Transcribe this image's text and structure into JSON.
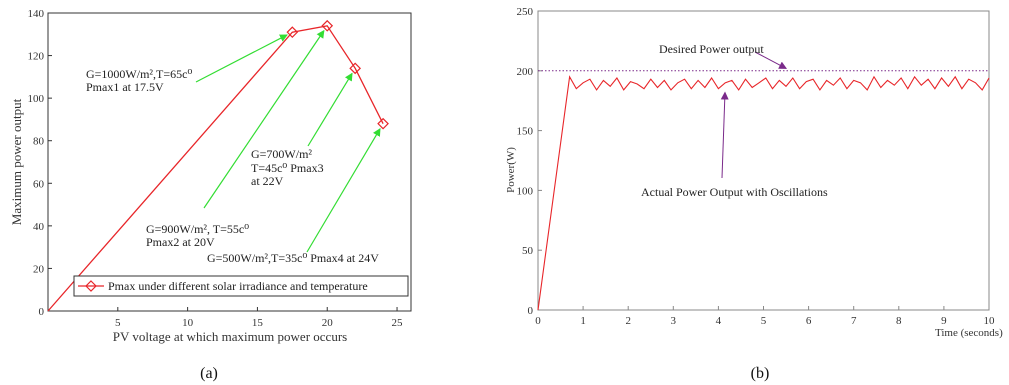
{
  "chart_data": [
    {
      "type": "line",
      "xlabel": "PV voltage at which maximum power occurs",
      "ylabel": "Maximum power output",
      "xlim": [
        0,
        26
      ],
      "ylim": [
        0,
        140
      ],
      "xticks": [
        5,
        10,
        15,
        20,
        25
      ],
      "yticks": [
        0,
        20,
        40,
        60,
        80,
        100,
        120,
        140
      ],
      "grid": false,
      "legend": "bottom",
      "line_color": "#e8262a",
      "arrow_color": "#33dd33",
      "series": [
        {
          "name": "Pmax under different solar irradiance and temperature",
          "marker": "diamond",
          "x": [
            0,
            17.5,
            20,
            22,
            24
          ],
          "y": [
            0,
            131,
            134,
            114,
            88
          ],
          "marker_x": [
            17.5,
            20,
            22,
            24
          ],
          "marker_y": [
            131,
            134,
            114,
            88
          ]
        }
      ],
      "annotations": [
        {
          "lines": [
            "G=1000W/m²,T=65c⁰",
            "Pmax1 at 17.5V"
          ],
          "target": [
            17.5,
            131
          ]
        },
        {
          "lines": [
            "G=900W/m², T=55c⁰",
            "Pmax2 at 20V"
          ],
          "target": [
            20,
            134
          ]
        },
        {
          "lines": [
            "G=700W/m²",
            "T=45c⁰ Pmax3",
            "at 22V"
          ],
          "target": [
            22,
            114
          ]
        },
        {
          "lines": [
            "G=500W/m²,T=35c⁰ Pmax4 at 24V"
          ],
          "target": [
            24,
            88
          ]
        }
      ],
      "caption": "(a)"
    },
    {
      "type": "line",
      "xlabel": "Time (seconds)",
      "ylabel": "Power(W)",
      "xlim": [
        0,
        10
      ],
      "ylim": [
        0,
        250
      ],
      "xticks": [
        0,
        1,
        2,
        3,
        4,
        5,
        6,
        7,
        8,
        9,
        10
      ],
      "yticks": [
        0,
        50,
        100,
        150,
        200,
        250
      ],
      "grid": false,
      "line_color": "#e8262a",
      "reference_color": "#7a2a8a",
      "reference_line": {
        "label": "Desired Power output",
        "y": 200
      },
      "series": [
        {
          "name": "Actual Power Output with Oscillations",
          "x": [
            0,
            0.7,
            0.85,
            1.0,
            1.15,
            1.3,
            1.45,
            1.6,
            1.75,
            1.9,
            2.05,
            2.2,
            2.35,
            2.5,
            2.65,
            2.8,
            2.95,
            3.1,
            3.25,
            3.4,
            3.55,
            3.7,
            3.85,
            4.0,
            4.15,
            4.3,
            4.45,
            4.6,
            4.75,
            4.9,
            5.05,
            5.2,
            5.35,
            5.5,
            5.65,
            5.8,
            5.95,
            6.1,
            6.25,
            6.4,
            6.55,
            6.7,
            6.85,
            7.0,
            7.15,
            7.3,
            7.45,
            7.6,
            7.75,
            7.9,
            8.05,
            8.2,
            8.35,
            8.5,
            8.65,
            8.8,
            8.95,
            9.1,
            9.25,
            9.4,
            9.55,
            9.7,
            9.85,
            10.0
          ],
          "y": [
            0,
            195,
            185,
            190,
            193,
            184,
            192,
            187,
            194,
            184,
            191,
            189,
            185,
            193,
            186,
            192,
            184,
            190,
            193,
            185,
            192,
            186,
            194,
            185,
            190,
            192,
            184,
            193,
            186,
            190,
            194,
            185,
            192,
            187,
            194,
            185,
            191,
            193,
            184,
            192,
            188,
            194,
            185,
            192,
            190,
            184,
            195,
            186,
            192,
            188,
            194,
            185,
            195,
            188,
            193,
            185,
            194,
            187,
            195,
            185,
            193,
            190,
            184,
            194
          ]
        }
      ],
      "annotations": [
        {
          "lines": [
            "Desired Power output"
          ],
          "target": [
            5.6,
            200
          ]
        },
        {
          "lines": [
            "Actual Power Output with Oscillations"
          ],
          "target": [
            4.15,
            186
          ]
        }
      ],
      "caption": "(b)"
    }
  ]
}
